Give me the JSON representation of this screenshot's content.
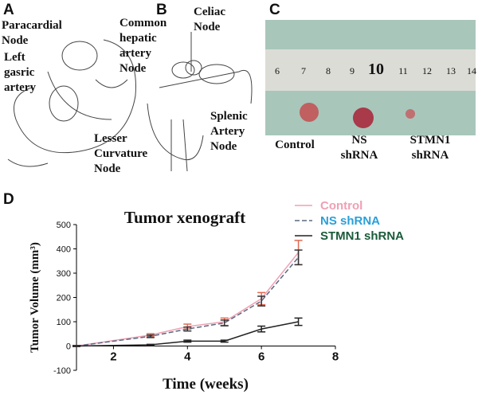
{
  "panels": [
    {
      "letter": "A",
      "labels": [
        {
          "lines": [
            "Paracardial",
            "Node"
          ]
        },
        {
          "lines": [
            "Left",
            "gasric",
            "artery"
          ]
        },
        {
          "lines": [
            "Lesser",
            "Curvature",
            "Node"
          ]
        }
      ]
    },
    {
      "letter": "B",
      "labels": [
        {
          "lines": [
            "Common",
            "hepatic",
            "artery",
            "Node"
          ]
        },
        {
          "lines": [
            "Celiac",
            "Node"
          ]
        },
        {
          "lines": [
            "Splenic",
            "Artery",
            "Node"
          ]
        }
      ]
    },
    {
      "letter": "C",
      "ruler": [
        "6",
        "7",
        "8",
        "9",
        "10",
        "11",
        "12",
        "13",
        "14"
      ],
      "labels": [
        {
          "lines": [
            "Control"
          ]
        },
        {
          "lines": [
            "NS",
            "shRNA"
          ]
        },
        {
          "lines": [
            "STMN1",
            "shRNA"
          ]
        }
      ]
    }
  ],
  "chart_data": {
    "type": "line",
    "panel": "D",
    "title": "Tumor xenograft",
    "x_label": "Time (weeks)",
    "y_label": "Tumor Volume (mm³)",
    "x": [
      1,
      3,
      4,
      5,
      6,
      7
    ],
    "series": [
      {
        "name": "Control",
        "color": "#f0a0b4",
        "error_color": "#e06a50",
        "label_color": "#f0a0b4",
        "dash": false,
        "values": [
          0,
          45,
          80,
          100,
          195,
          385
        ],
        "errors": [
          2,
          6,
          10,
          15,
          25,
          50
        ]
      },
      {
        "name": "NS shRNA",
        "color": "#5a6a80",
        "error_color": "#333",
        "label_color": "#2a9fd8",
        "dash": true,
        "values": [
          0,
          40,
          70,
          95,
          185,
          365
        ],
        "errors": [
          2,
          5,
          8,
          12,
          20,
          30
        ]
      },
      {
        "name": "STMN1 shRNA",
        "color": "#222",
        "error_color": "#222",
        "label_color": "#1a5a3a",
        "dash": false,
        "values": [
          0,
          5,
          20,
          20,
          70,
          100
        ],
        "errors": [
          1,
          2,
          4,
          4,
          12,
          15
        ]
      }
    ],
    "xlim": [
      1,
      8
    ],
    "ylim": [
      -100,
      500
    ],
    "xticks": [
      2,
      4,
      6,
      8
    ],
    "yticks": [
      -100,
      0,
      100,
      200,
      300,
      400,
      500
    ]
  }
}
